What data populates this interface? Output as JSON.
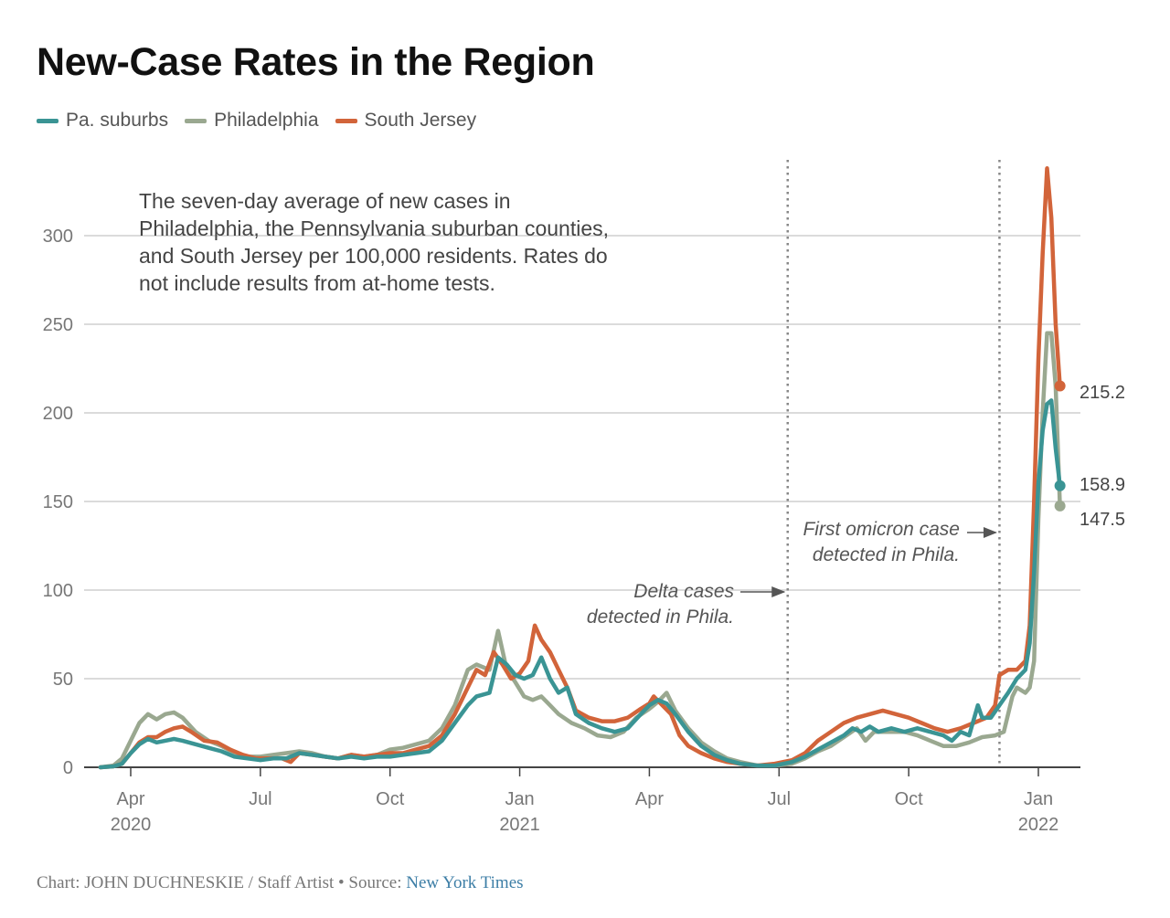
{
  "chart_data": {
    "type": "line",
    "title": "New-Case Rates in the Region",
    "note": "The seven-day average of new cases in Philadelphia, the Pennsylvania suburban counties, and South Jersey per 100,000 residents. Rates do not include results from at-home tests.",
    "xlabel": "",
    "ylabel": "",
    "ylim": [
      0,
      340
    ],
    "yticks": [
      0,
      50,
      100,
      150,
      200,
      250,
      300
    ],
    "xunit": "months since Jan 2020",
    "xlim": [
      2.3,
      25.0
    ],
    "xticks": [
      {
        "x": 3,
        "label": "Apr",
        "year": "2020"
      },
      {
        "x": 6,
        "label": "Jul",
        "year": ""
      },
      {
        "x": 9,
        "label": "Oct",
        "year": ""
      },
      {
        "x": 12,
        "label": "Jan",
        "year": "2021"
      },
      {
        "x": 15,
        "label": "Apr",
        "year": ""
      },
      {
        "x": 18,
        "label": "Jul",
        "year": ""
      },
      {
        "x": 21,
        "label": "Oct",
        "year": ""
      },
      {
        "x": 24,
        "label": "Jan",
        "year": "2022"
      }
    ],
    "grid": true,
    "legend_position": "top-left",
    "series": [
      {
        "name": "Pa. suburbs",
        "color": "#3a9494",
        "end_label": "158.9",
        "points": [
          [
            2.3,
            0
          ],
          [
            2.6,
            0.5
          ],
          [
            2.8,
            2
          ],
          [
            3.0,
            8
          ],
          [
            3.2,
            13
          ],
          [
            3.4,
            16
          ],
          [
            3.6,
            14
          ],
          [
            3.8,
            15
          ],
          [
            4.0,
            16
          ],
          [
            4.2,
            15
          ],
          [
            4.5,
            13
          ],
          [
            4.8,
            11
          ],
          [
            5.1,
            9
          ],
          [
            5.4,
            6
          ],
          [
            5.7,
            5
          ],
          [
            6.0,
            4
          ],
          [
            6.3,
            5
          ],
          [
            6.6,
            5
          ],
          [
            6.9,
            8
          ],
          [
            7.2,
            7
          ],
          [
            7.5,
            6
          ],
          [
            7.8,
            5
          ],
          [
            8.1,
            6
          ],
          [
            8.4,
            5
          ],
          [
            8.7,
            6
          ],
          [
            9.0,
            6
          ],
          [
            9.3,
            7
          ],
          [
            9.6,
            8
          ],
          [
            9.9,
            9
          ],
          [
            10.2,
            15
          ],
          [
            10.5,
            25
          ],
          [
            10.8,
            35
          ],
          [
            11.0,
            40
          ],
          [
            11.3,
            42
          ],
          [
            11.5,
            62
          ],
          [
            11.7,
            58
          ],
          [
            11.9,
            52
          ],
          [
            12.1,
            50
          ],
          [
            12.3,
            52
          ],
          [
            12.5,
            62
          ],
          [
            12.7,
            50
          ],
          [
            12.9,
            42
          ],
          [
            13.1,
            45
          ],
          [
            13.3,
            30
          ],
          [
            13.6,
            25
          ],
          [
            13.9,
            22
          ],
          [
            14.2,
            20
          ],
          [
            14.5,
            22
          ],
          [
            14.8,
            30
          ],
          [
            15.0,
            35
          ],
          [
            15.2,
            38
          ],
          [
            15.4,
            36
          ],
          [
            15.6,
            30
          ],
          [
            15.9,
            20
          ],
          [
            16.2,
            12
          ],
          [
            16.5,
            7
          ],
          [
            16.8,
            4
          ],
          [
            17.1,
            2
          ],
          [
            17.5,
            1
          ],
          [
            17.9,
            1
          ],
          [
            18.3,
            3
          ],
          [
            18.6,
            6
          ],
          [
            18.9,
            10
          ],
          [
            19.2,
            14
          ],
          [
            19.5,
            18
          ],
          [
            19.7,
            22
          ],
          [
            19.9,
            20
          ],
          [
            20.1,
            23
          ],
          [
            20.3,
            20
          ],
          [
            20.6,
            22
          ],
          [
            20.9,
            20
          ],
          [
            21.2,
            22
          ],
          [
            21.5,
            20
          ],
          [
            21.8,
            18
          ],
          [
            22.0,
            15
          ],
          [
            22.2,
            20
          ],
          [
            22.4,
            18
          ],
          [
            22.6,
            35
          ],
          [
            22.7,
            28
          ],
          [
            22.9,
            28
          ],
          [
            23.1,
            35
          ],
          [
            23.3,
            42
          ],
          [
            23.5,
            50
          ],
          [
            23.7,
            55
          ],
          [
            23.8,
            70
          ],
          [
            23.9,
            110
          ],
          [
            24.0,
            160
          ],
          [
            24.1,
            190
          ],
          [
            24.2,
            205
          ],
          [
            24.3,
            207
          ],
          [
            24.4,
            180
          ],
          [
            24.5,
            158.9
          ]
        ]
      },
      {
        "name": "Philadelphia",
        "color": "#9aa890",
        "end_label": "147.5",
        "points": [
          [
            2.3,
            0
          ],
          [
            2.6,
            1
          ],
          [
            2.8,
            5
          ],
          [
            3.0,
            15
          ],
          [
            3.2,
            25
          ],
          [
            3.4,
            30
          ],
          [
            3.6,
            27
          ],
          [
            3.8,
            30
          ],
          [
            4.0,
            31
          ],
          [
            4.2,
            28
          ],
          [
            4.5,
            20
          ],
          [
            4.8,
            15
          ],
          [
            5.1,
            12
          ],
          [
            5.4,
            8
          ],
          [
            5.7,
            6
          ],
          [
            6.0,
            6
          ],
          [
            6.3,
            7
          ],
          [
            6.6,
            8
          ],
          [
            6.9,
            9
          ],
          [
            7.2,
            8
          ],
          [
            7.5,
            6
          ],
          [
            7.8,
            5
          ],
          [
            8.1,
            7
          ],
          [
            8.4,
            6
          ],
          [
            8.7,
            7
          ],
          [
            9.0,
            10
          ],
          [
            9.3,
            11
          ],
          [
            9.6,
            13
          ],
          [
            9.9,
            15
          ],
          [
            10.2,
            22
          ],
          [
            10.5,
            35
          ],
          [
            10.8,
            55
          ],
          [
            11.0,
            58
          ],
          [
            11.3,
            55
          ],
          [
            11.5,
            77
          ],
          [
            11.7,
            55
          ],
          [
            11.9,
            48
          ],
          [
            12.1,
            40
          ],
          [
            12.3,
            38
          ],
          [
            12.5,
            40
          ],
          [
            12.7,
            35
          ],
          [
            12.9,
            30
          ],
          [
            13.2,
            25
          ],
          [
            13.5,
            22
          ],
          [
            13.8,
            18
          ],
          [
            14.1,
            17
          ],
          [
            14.4,
            20
          ],
          [
            14.7,
            28
          ],
          [
            15.0,
            33
          ],
          [
            15.2,
            37
          ],
          [
            15.4,
            42
          ],
          [
            15.6,
            32
          ],
          [
            15.9,
            22
          ],
          [
            16.2,
            14
          ],
          [
            16.5,
            9
          ],
          [
            16.8,
            5
          ],
          [
            17.1,
            3
          ],
          [
            17.5,
            1
          ],
          [
            17.9,
            1
          ],
          [
            18.3,
            2
          ],
          [
            18.6,
            5
          ],
          [
            18.9,
            9
          ],
          [
            19.2,
            12
          ],
          [
            19.5,
            17
          ],
          [
            19.8,
            22
          ],
          [
            20.0,
            15
          ],
          [
            20.2,
            20
          ],
          [
            20.5,
            20
          ],
          [
            20.9,
            20
          ],
          [
            21.2,
            18
          ],
          [
            21.5,
            15
          ],
          [
            21.8,
            12
          ],
          [
            22.1,
            12
          ],
          [
            22.4,
            14
          ],
          [
            22.7,
            17
          ],
          [
            23.0,
            18
          ],
          [
            23.2,
            20
          ],
          [
            23.4,
            40
          ],
          [
            23.5,
            45
          ],
          [
            23.7,
            42
          ],
          [
            23.8,
            45
          ],
          [
            23.9,
            60
          ],
          [
            24.0,
            140
          ],
          [
            24.1,
            200
          ],
          [
            24.2,
            245
          ],
          [
            24.3,
            245
          ],
          [
            24.4,
            215
          ],
          [
            24.5,
            147.5
          ]
        ]
      },
      {
        "name": "South Jersey",
        "color": "#d2643a",
        "end_label": "215.2",
        "points": [
          [
            2.3,
            0
          ],
          [
            2.6,
            0.5
          ],
          [
            2.8,
            2
          ],
          [
            3.0,
            8
          ],
          [
            3.2,
            14
          ],
          [
            3.4,
            17
          ],
          [
            3.6,
            17
          ],
          [
            3.8,
            20
          ],
          [
            4.0,
            22
          ],
          [
            4.2,
            23
          ],
          [
            4.4,
            20
          ],
          [
            4.7,
            15
          ],
          [
            5.0,
            14
          ],
          [
            5.3,
            10
          ],
          [
            5.6,
            7
          ],
          [
            5.9,
            5
          ],
          [
            6.2,
            5
          ],
          [
            6.5,
            5
          ],
          [
            6.7,
            3
          ],
          [
            6.9,
            8
          ],
          [
            7.2,
            7
          ],
          [
            7.5,
            6
          ],
          [
            7.8,
            5
          ],
          [
            8.1,
            7
          ],
          [
            8.4,
            6
          ],
          [
            8.7,
            7
          ],
          [
            9.0,
            8
          ],
          [
            9.3,
            8
          ],
          [
            9.6,
            10
          ],
          [
            9.9,
            12
          ],
          [
            10.2,
            18
          ],
          [
            10.5,
            30
          ],
          [
            10.8,
            45
          ],
          [
            11.0,
            55
          ],
          [
            11.2,
            52
          ],
          [
            11.4,
            65
          ],
          [
            11.6,
            58
          ],
          [
            11.8,
            50
          ],
          [
            12.0,
            53
          ],
          [
            12.2,
            60
          ],
          [
            12.35,
            80
          ],
          [
            12.5,
            72
          ],
          [
            12.7,
            65
          ],
          [
            12.9,
            55
          ],
          [
            13.1,
            45
          ],
          [
            13.3,
            32
          ],
          [
            13.6,
            28
          ],
          [
            13.9,
            26
          ],
          [
            14.2,
            26
          ],
          [
            14.5,
            28
          ],
          [
            14.8,
            33
          ],
          [
            15.0,
            36
          ],
          [
            15.1,
            40
          ],
          [
            15.3,
            35
          ],
          [
            15.5,
            30
          ],
          [
            15.7,
            18
          ],
          [
            15.9,
            12
          ],
          [
            16.2,
            8
          ],
          [
            16.5,
            5
          ],
          [
            16.8,
            3
          ],
          [
            17.1,
            2
          ],
          [
            17.5,
            1
          ],
          [
            17.9,
            2
          ],
          [
            18.3,
            4
          ],
          [
            18.6,
            8
          ],
          [
            18.9,
            15
          ],
          [
            19.2,
            20
          ],
          [
            19.5,
            25
          ],
          [
            19.8,
            28
          ],
          [
            20.1,
            30
          ],
          [
            20.4,
            32
          ],
          [
            20.7,
            30
          ],
          [
            21.0,
            28
          ],
          [
            21.3,
            25
          ],
          [
            21.6,
            22
          ],
          [
            21.9,
            20
          ],
          [
            22.2,
            22
          ],
          [
            22.5,
            25
          ],
          [
            22.8,
            28
          ],
          [
            23.0,
            35
          ],
          [
            23.1,
            52
          ],
          [
            23.3,
            55
          ],
          [
            23.5,
            55
          ],
          [
            23.7,
            60
          ],
          [
            23.8,
            80
          ],
          [
            23.9,
            150
          ],
          [
            24.0,
            230
          ],
          [
            24.1,
            290
          ],
          [
            24.2,
            338
          ],
          [
            24.3,
            310
          ],
          [
            24.4,
            250
          ],
          [
            24.5,
            215.2
          ]
        ]
      }
    ],
    "vlines": [
      {
        "x": 18.2,
        "label_lines": [
          "Delta cases",
          "detected in Phila."
        ]
      },
      {
        "x": 23.1,
        "label_lines": [
          "First omicron case",
          "detected in Phila."
        ]
      }
    ]
  },
  "footer": {
    "credit": "Chart: JOHN DUCHNESKIE / Staff Artist • Source: ",
    "source_link": "New York Times"
  }
}
